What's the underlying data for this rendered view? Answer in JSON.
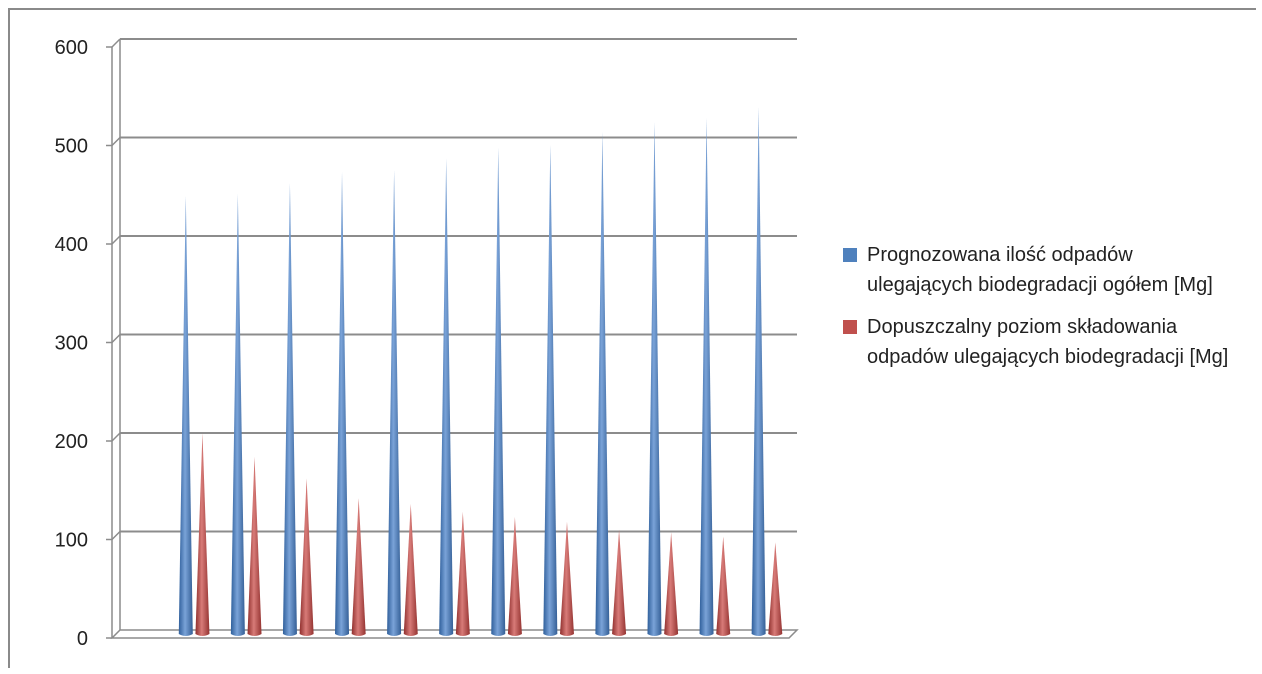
{
  "chart_data": {
    "type": "bar",
    "title": "",
    "xlabel": "",
    "ylabel": "",
    "ylim": [
      0,
      600
    ],
    "y_ticks": [
      "0",
      "100",
      "200",
      "300",
      "400",
      "500",
      "600"
    ],
    "categories": [
      "",
      "",
      "",
      "",
      "",
      "",
      "",
      "",
      "",
      "",
      "",
      "",
      ""
    ],
    "grid": true,
    "legend_position": "right",
    "series": [
      {
        "name": "Prognozowana ilość odpadów ulegających biodegradacji ogółem [Mg]",
        "color": "#4f81bd",
        "values": [
          null,
          445,
          447,
          458,
          469,
          471,
          483,
          494,
          497,
          510,
          520,
          524,
          535
        ]
      },
      {
        "name": "Dopuszczalny poziom składowania odpadów ulegających biodegradacji [Mg]",
        "color": "#c0504d",
        "values": [
          null,
          204,
          180,
          158,
          138,
          132,
          124,
          119,
          114,
          106,
          103,
          99,
          93
        ]
      }
    ]
  }
}
